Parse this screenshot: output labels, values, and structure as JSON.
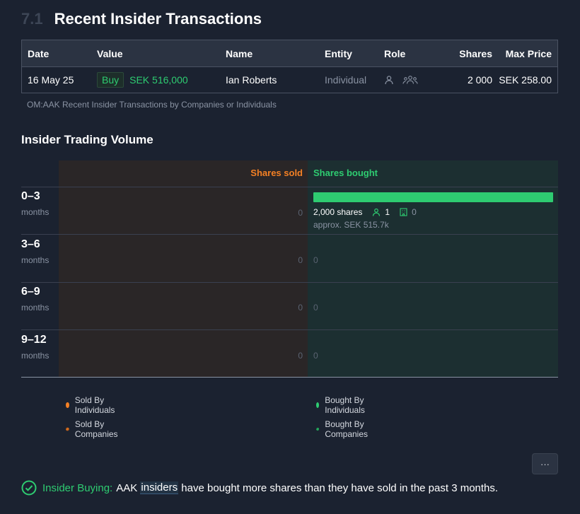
{
  "section": {
    "number": "7.1",
    "title": "Recent Insider Transactions"
  },
  "table": {
    "headers": {
      "date": "Date",
      "value": "Value",
      "name": "Name",
      "entity": "Entity",
      "role": "Role",
      "shares": "Shares",
      "max_price": "Max Price"
    },
    "rows": [
      {
        "date": "16 May 25",
        "type": "Buy",
        "value": "SEK 516,000",
        "name": "Ian Roberts",
        "entity": "Individual",
        "shares": "2 000",
        "max_price": "SEK 258.00"
      }
    ],
    "caption": "OM:AAK Recent Insider Transactions by Companies or Individuals"
  },
  "volume": {
    "title": "Insider Trading Volume",
    "sold_header": "Shares sold",
    "bought_header": "Shares bought",
    "rows": [
      {
        "range": "0–3",
        "unit": "months",
        "sold": "0",
        "bought": "",
        "bar_fraction": 1.0,
        "bought_shares": "2,000 shares",
        "individuals": "1",
        "companies": "0",
        "approx": "approx. SEK 515.7k"
      },
      {
        "range": "3–6",
        "unit": "months",
        "sold": "0",
        "bought": "0"
      },
      {
        "range": "6–9",
        "unit": "months",
        "sold": "0",
        "bought": "0"
      },
      {
        "range": "9–12",
        "unit": "months",
        "sold": "0",
        "bought": "0"
      }
    ],
    "legend": {
      "sold_individuals": "Sold By Individuals",
      "sold_companies": "Sold By Companies",
      "bought_individuals": "Bought By Individuals",
      "bought_companies": "Bought By Companies"
    },
    "colors": {
      "sold": "#f48024",
      "bought": "#2ecc71"
    }
  },
  "more_button": "···",
  "insight": {
    "label": "Insider Buying:",
    "text_pre": "AAK",
    "text_highlight": "insiders",
    "text_post": "have bought more shares than they have sold in the past 3 months."
  }
}
